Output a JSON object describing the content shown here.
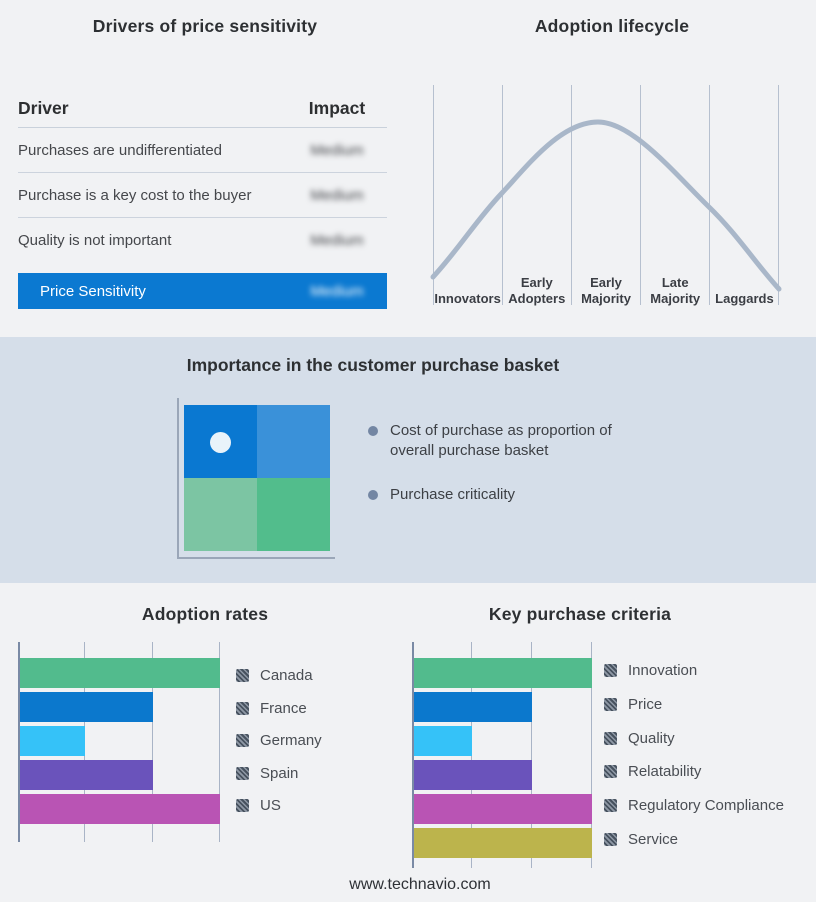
{
  "drivers_panel": {
    "title": "Drivers of price sensitivity",
    "columns": {
      "driver": "Driver",
      "impact": "Impact"
    },
    "rows": [
      {
        "driver": "Purchases are undifferentiated",
        "impact": "Medium"
      },
      {
        "driver": "Purchase is a key cost to the buyer",
        "impact": "Medium"
      },
      {
        "driver": "Quality is not important",
        "impact": "Medium"
      }
    ],
    "highlight": {
      "driver": "Price Sensitivity",
      "impact": "Medium"
    },
    "highlight_color": "#0b79d1"
  },
  "lifecycle_panel": {
    "title": "Adoption lifecycle",
    "stages": [
      "Innovators",
      "Early Adopters",
      "Early Majority",
      "Late Majority",
      "Laggards"
    ],
    "curve_color": "#a9b7c9"
  },
  "basket_panel": {
    "title": "Importance in the customer purchase basket",
    "background": "#d5dee9",
    "quadrant_colors": {
      "top_left": "#0a78d1",
      "top_right": "#3a91d9",
      "bottom_left": "#7cc5a3",
      "bottom_right": "#52bd8c"
    },
    "marker": "dot-in-top-left-quadrant",
    "bullets": [
      "Cost of purchase as proportion of overall purchase basket",
      "Purchase criticality"
    ]
  },
  "chart_data": [
    {
      "type": "bar",
      "orientation": "horizontal",
      "title": "Adoption rates",
      "categories": [
        "Canada",
        "France",
        "Germany",
        "Spain",
        "US"
      ],
      "values": [
        3,
        2,
        1,
        2,
        3
      ],
      "xlim": [
        0,
        3
      ],
      "grid": "on",
      "legend_position": "right",
      "colors": [
        "#52bb8d",
        "#0b78cd",
        "#35c2f8",
        "#6a53bb",
        "#b954b4"
      ]
    },
    {
      "type": "bar",
      "orientation": "horizontal",
      "title": "Key purchase criteria",
      "categories": [
        "Innovation",
        "Price",
        "Quality",
        "Relatability",
        "Regulatory Compliance",
        "Service"
      ],
      "values": [
        3,
        2,
        1,
        2,
        3,
        3
      ],
      "xlim": [
        0,
        3
      ],
      "grid": "on",
      "legend_position": "right",
      "colors": [
        "#52bb8d",
        "#0b78cd",
        "#35c2f8",
        "#6a53bb",
        "#b954b4",
        "#bcb44c"
      ]
    }
  ],
  "footer": {
    "text": "www.technavio.com"
  }
}
